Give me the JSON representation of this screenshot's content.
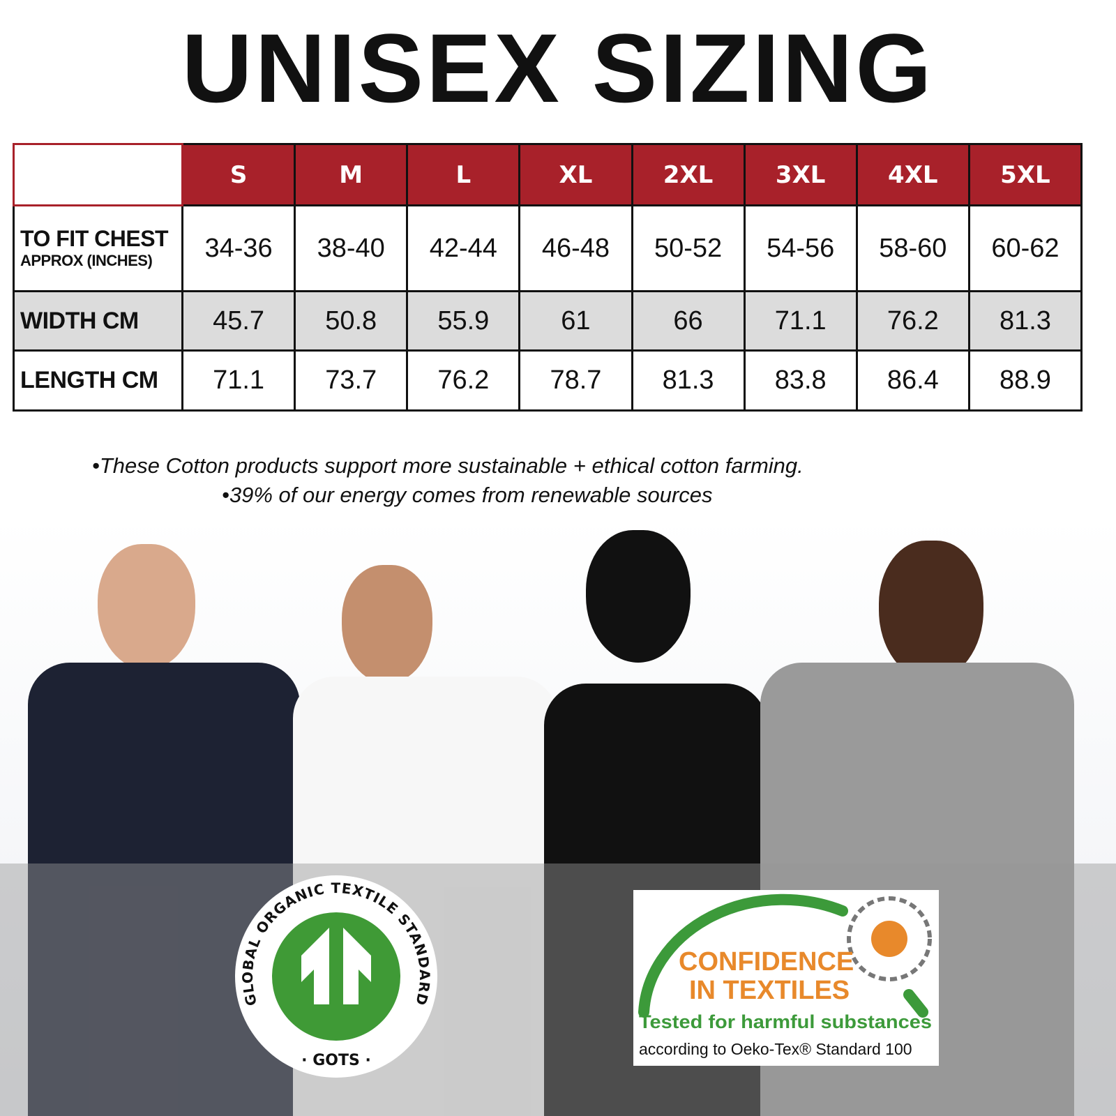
{
  "title": "UNISEX SIZING",
  "table": {
    "sizes": [
      "S",
      "M",
      "L",
      "XL",
      "2XL",
      "3XL",
      "4XL",
      "5XL"
    ],
    "rows": [
      {
        "label": "To Fit Chest",
        "sublabel": "Approx (Inches)",
        "values": [
          "34-36",
          "38-40",
          "42-44",
          "46-48",
          "50-52",
          "54-56",
          "58-60",
          "60-62"
        ]
      },
      {
        "label": "WIDTH CM",
        "values": [
          "45.7",
          "50.8",
          "55.9",
          "61",
          "66",
          "71.1",
          "76.2",
          "81.3"
        ]
      },
      {
        "label": "LENGTH CM",
        "values": [
          "71.1",
          "73.7",
          "76.2",
          "78.7",
          "81.3",
          "83.8",
          "86.4",
          "88.9"
        ]
      }
    ]
  },
  "notes": [
    "•These Cotton products support more sustainable + ethical cotton farming.",
    "•39% of our energy comes from renewable sources"
  ],
  "colors": {
    "header_red": "#a8212a",
    "gray_row": "#dcdcdc",
    "gots_green": "#3f9a36",
    "oeko_orange": "#e8892b",
    "oeko_green": "#3c9a3a"
  },
  "gots_logo": {
    "ring_text": "GLOBAL ORGANIC TEXTILE STANDARD",
    "bottom_text": "· GOTS ·"
  },
  "oeko_logo": {
    "line1": "CONFIDENCE",
    "line2": "IN TEXTILES",
    "line3": "Tested for harmful substances",
    "line4": "according to Oeko-Tex® Standard 100"
  },
  "models": [
    {
      "shirt": "#1d2233"
    },
    {
      "shirt": "#f7f7f7"
    },
    {
      "shirt": "#111111"
    },
    {
      "shirt": "#9a9a9a"
    }
  ]
}
